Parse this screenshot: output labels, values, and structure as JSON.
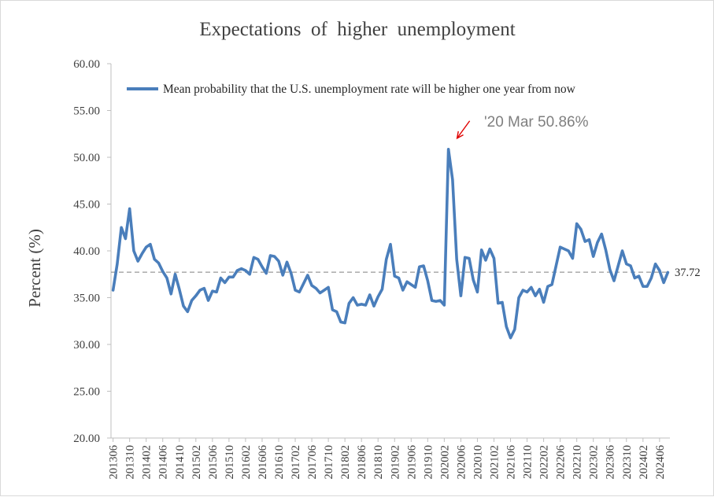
{
  "chart_data": {
    "type": "line",
    "title": "Expectations  of  higher  unemployment",
    "ylabel": "Percent (%)",
    "xlabel": "",
    "ylim": [
      20,
      60
    ],
    "yticks": [
      "20.00",
      "25.00",
      "30.00",
      "35.00",
      "40.00",
      "45.00",
      "50.00",
      "55.00",
      "60.00"
    ],
    "xtick_labels": [
      "201306",
      "201310",
      "201402",
      "201406",
      "201410",
      "201502",
      "201506",
      "201510",
      "201602",
      "201606",
      "201610",
      "201702",
      "201706",
      "201710",
      "201802",
      "201806",
      "201810",
      "201902",
      "201906",
      "201910",
      "202002",
      "202006",
      "202010",
      "202102",
      "202106",
      "202110",
      "202202",
      "202206",
      "202210",
      "202302",
      "202306",
      "202310",
      "202402",
      "202406"
    ],
    "grid": false,
    "legend": "top-right",
    "x_start": "201306",
    "series": [
      {
        "name": "Mean probability that the U.S. unemployment rate will be higher one year from now",
        "color": "#4a7ebb",
        "values": [
          35.8,
          38.6,
          42.5,
          41.3,
          44.5,
          40.0,
          38.9,
          39.7,
          40.4,
          40.7,
          39.1,
          38.7,
          37.8,
          37.1,
          35.4,
          37.5,
          35.9,
          34.1,
          33.5,
          34.7,
          35.2,
          35.8,
          36.0,
          34.7,
          35.7,
          35.6,
          37.1,
          36.6,
          37.2,
          37.2,
          37.9,
          38.1,
          37.9,
          37.5,
          39.3,
          39.1,
          38.3,
          37.6,
          39.5,
          39.4,
          38.9,
          37.4,
          38.8,
          37.6,
          35.8,
          35.6,
          36.5,
          37.4,
          36.3,
          36.0,
          35.5,
          35.8,
          36.1,
          33.7,
          33.5,
          32.4,
          32.3,
          34.4,
          35.0,
          34.2,
          34.3,
          34.2,
          35.3,
          34.1,
          35.1,
          35.9,
          39.1,
          40.7,
          37.3,
          37.1,
          35.8,
          36.7,
          36.4,
          36.1,
          38.3,
          38.4,
          36.8,
          34.7,
          34.6,
          34.7,
          34.2,
          50.86,
          47.6,
          39.1,
          35.2,
          39.3,
          39.2,
          36.9,
          35.6,
          40.1,
          39.0,
          40.2,
          39.2,
          34.4,
          34.5,
          31.9,
          30.7,
          31.6,
          35.0,
          35.8,
          35.6,
          36.1,
          35.2,
          35.9,
          34.5,
          36.2,
          36.4,
          38.4,
          40.4,
          40.2,
          40.0,
          39.2,
          42.9,
          42.3,
          41.0,
          41.2,
          39.4,
          40.9,
          41.8,
          40.1,
          38.0,
          36.8,
          38.4,
          40.0,
          38.6,
          38.4,
          37.1,
          37.3,
          36.2,
          36.2,
          37.1,
          38.6,
          37.9,
          36.6,
          37.7
        ]
      }
    ],
    "reference_line": {
      "value": 37.72,
      "label": "37.72",
      "style": "dashed",
      "color": "#999999"
    },
    "annotation": {
      "text": "'20 Mar 50.86%",
      "x": "202003",
      "y": 50.86,
      "arrow_color": "#e00000"
    }
  }
}
